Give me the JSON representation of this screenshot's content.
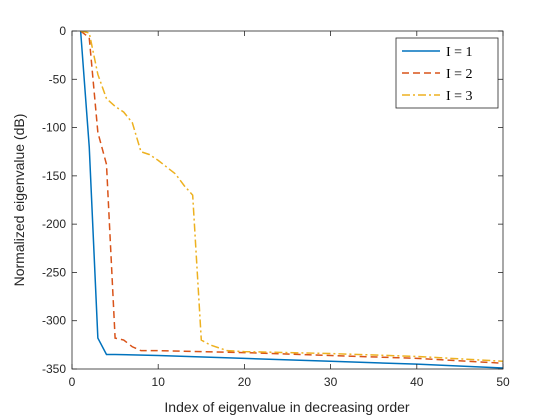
{
  "chart_data": {
    "type": "line",
    "title": "",
    "xlabel": "Index of eigenvalue in decreasing order",
    "ylabel": "Normalized eigenvalue (dB)",
    "xlim": [
      0,
      50
    ],
    "ylim": [
      -350,
      0
    ],
    "xticks": [
      0,
      10,
      20,
      30,
      40,
      50
    ],
    "yticks": [
      0,
      -50,
      -100,
      -150,
      -200,
      -250,
      -300,
      -350
    ],
    "grid": false,
    "legend_position": "top-right",
    "series": [
      {
        "name": "I = 1",
        "color": "#0072BD",
        "dash": "solid",
        "x": [
          1,
          2,
          3,
          4,
          5,
          10,
          20,
          30,
          40,
          50
        ],
        "y": [
          0,
          -120,
          -318,
          -335,
          -335,
          -336,
          -339,
          -342,
          -345,
          -349
        ]
      },
      {
        "name": "I = 2",
        "color": "#D95319",
        "dash": "dashed",
        "x": [
          1,
          2,
          3,
          4,
          5,
          6,
          7,
          8,
          10,
          20,
          30,
          40,
          50
        ],
        "y": [
          0,
          -7,
          -105,
          -138,
          -318,
          -320,
          -327,
          -331,
          -331,
          -333,
          -336,
          -339,
          -344
        ]
      },
      {
        "name": "I = 3",
        "color": "#EDB120",
        "dash": "dashdot",
        "x": [
          1,
          2,
          3,
          4,
          5,
          6,
          7,
          8,
          9,
          10,
          11,
          12,
          13,
          14,
          15,
          16,
          18,
          20,
          30,
          40,
          50
        ],
        "y": [
          0,
          -2,
          -45,
          -70,
          -78,
          -84,
          -95,
          -125,
          -128,
          -134,
          -141,
          -148,
          -160,
          -170,
          -320,
          -325,
          -331,
          -332,
          -334,
          -337,
          -342
        ]
      }
    ]
  }
}
